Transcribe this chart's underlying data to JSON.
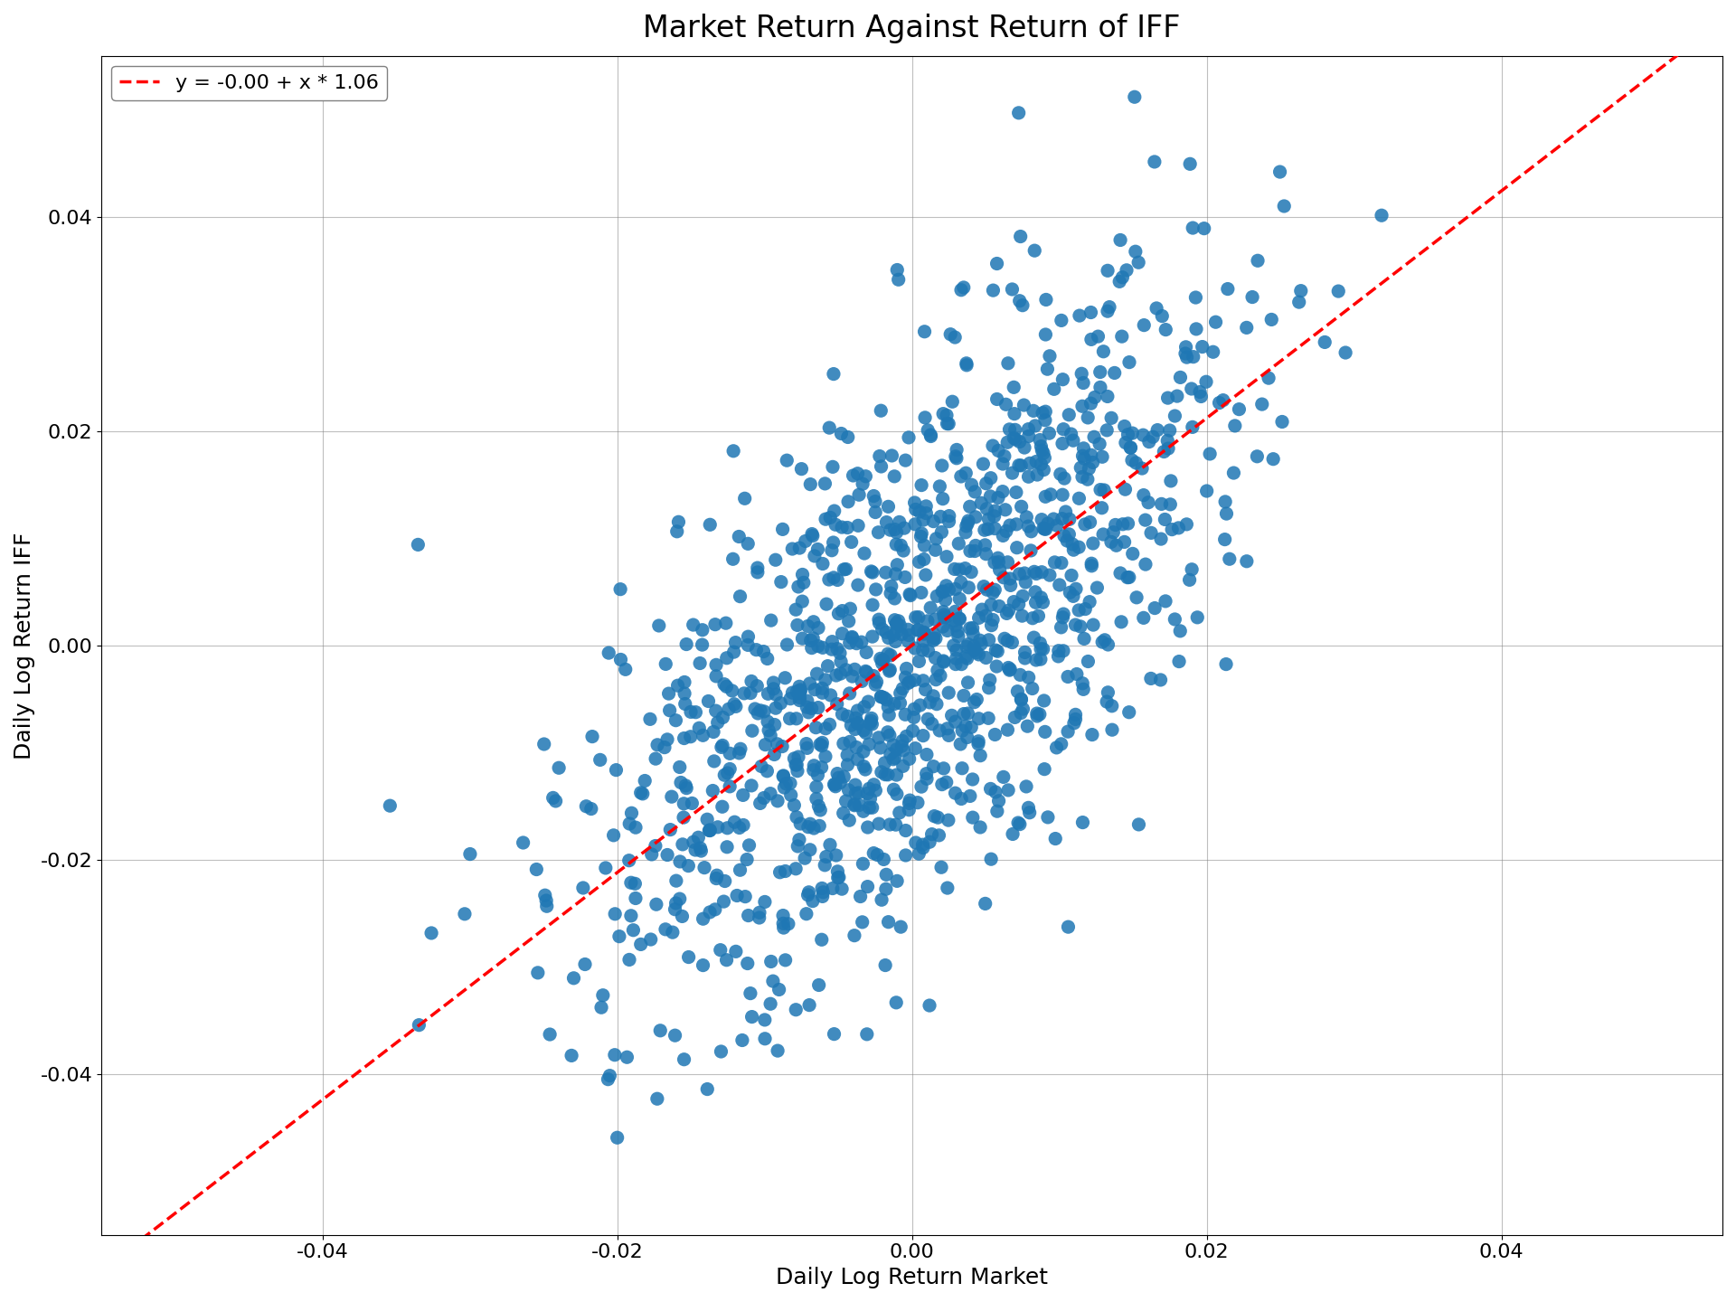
{
  "title": "Market Return Against Return of IFF",
  "xlabel": "Daily Log Return Market",
  "ylabel": "Daily Log Return IFF",
  "legend_label": "y = -0.00 + x * 1.06",
  "intercept": -0.0,
  "slope": 1.06,
  "dot_color": "#1f77b4",
  "line_color": "red",
  "dot_size": 120,
  "dot_alpha": 0.85,
  "xlim": [
    -0.055,
    0.055
  ],
  "ylim": [
    -0.055,
    0.055
  ],
  "xticks": [
    -0.04,
    -0.02,
    0.0,
    0.02,
    0.04
  ],
  "yticks": [
    -0.04,
    -0.02,
    0.0,
    0.02,
    0.04
  ],
  "n_points": 1200,
  "seed": 7,
  "market_mean": 0.0004,
  "market_std": 0.011,
  "residual_std": 0.012,
  "title_fontsize": 24,
  "label_fontsize": 18,
  "tick_fontsize": 16,
  "legend_fontsize": 16,
  "figsize": [
    19.2,
    14.4
  ],
  "dpi": 100
}
